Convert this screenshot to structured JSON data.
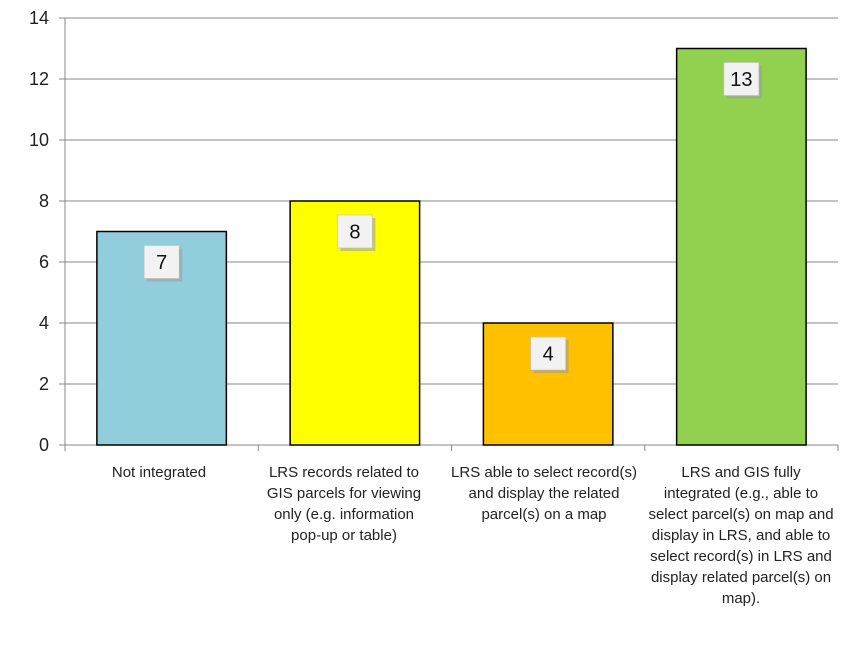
{
  "chart_data": {
    "type": "bar",
    "categories": [
      "Not integrated",
      "LRS records related to GIS parcels for viewing only (e.g. information pop-up or table)",
      "LRS able to select record(s) and display the related parcel(s) on a map",
      "LRS and GIS fully integrated (e.g., able to select parcel(s) on map and display in LRS, and able to select record(s) in LRS and display related parcel(s) on map)."
    ],
    "values": [
      7,
      8,
      4,
      13
    ],
    "data_labels": [
      "7",
      "8",
      "4",
      "13"
    ],
    "title": "",
    "xlabel": "",
    "ylabel": "",
    "ylim": [
      0,
      14
    ],
    "yticks": [
      0,
      2,
      4,
      6,
      8,
      10,
      12,
      14
    ],
    "ytick_labels": [
      "0",
      "2",
      "4",
      "6",
      "8",
      "10",
      "12",
      "14"
    ],
    "grid": true,
    "legend": "none",
    "colors": [
      "#92CDDC",
      "#FFFF00",
      "#FFC000",
      "#92D050"
    ],
    "label_box_color": "#F2F2F2",
    "grid_color": "#888888"
  }
}
